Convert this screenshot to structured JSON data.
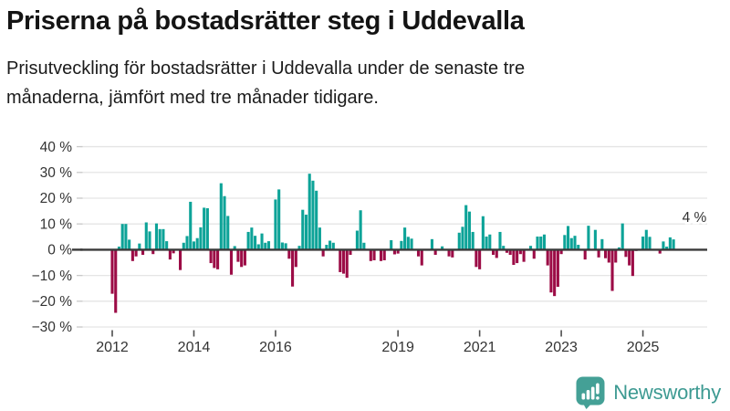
{
  "header": {
    "title": "Priserna på bostadsrätter steg i Uddevalla",
    "subtitle": "Prisutveckling för bostadsrätter i Uddevalla under de senaste tre månaderna, jämfört med tre månader tidigare."
  },
  "chart_data": {
    "type": "bar",
    "unit": "%",
    "frequency": "monthly",
    "start": "2012-01",
    "end": "2025-10",
    "ylim": [
      -30,
      40
    ],
    "grid": true,
    "legend": false,
    "values": [
      -17.1,
      -24.5,
      1.2,
      10,
      10,
      3.9,
      -4.4,
      -2.6,
      2.4,
      -2,
      10.6,
      7.1,
      -1.7,
      10.2,
      8,
      8,
      3.3,
      -3.8,
      -1.4,
      0,
      -7.9,
      2.7,
      5.3,
      18.6,
      3.2,
      4.5,
      8.7,
      16.3,
      16.1,
      -5.2,
      -7.1,
      -7.6,
      25.8,
      20.8,
      13.1,
      -9.7,
      1.4,
      -4.7,
      -6.7,
      -6.1,
      6.9,
      8.6,
      5.4,
      2.1,
      6.3,
      2.7,
      3.3,
      0,
      19.5,
      23.4,
      2.8,
      2.5,
      -3.5,
      -14.3,
      -6.7,
      1.5,
      15.5,
      13.6,
      29.5,
      26.8,
      22.9,
      8.6,
      -2.6,
      1.9,
      3.5,
      2.7,
      0,
      -8.7,
      -9.3,
      -10.9,
      -2,
      0,
      7.4,
      15.3,
      2.7,
      0,
      -4.4,
      -4.1,
      0,
      -4.4,
      -4.1,
      0,
      3.7,
      -1.8,
      -1.5,
      3.4,
      8.6,
      5,
      4.3,
      0.3,
      -2.6,
      -6.1,
      0,
      0,
      4.1,
      -2,
      0,
      1.3,
      0,
      -2.6,
      -3,
      0,
      6.6,
      8.9,
      17.3,
      14.8,
      6.9,
      -6.7,
      -7.6,
      13,
      5.1,
      5.9,
      -2,
      -3.2,
      6.9,
      1.5,
      -1.2,
      -2,
      -5.9,
      -5.2,
      -1.7,
      -4.7,
      0,
      1.5,
      -3.5,
      5.1,
      5.1,
      5.9,
      -6.1,
      -16.6,
      -18,
      -14.4,
      -1.7,
      5.7,
      9.2,
      4.5,
      5.4,
      1.9,
      0,
      -3.8,
      9.3,
      0,
      7.7,
      -3,
      4.1,
      -3.3,
      -5,
      -16,
      -5,
      0.9,
      10.2,
      -2.8,
      -6.1,
      -10.2,
      -0.5,
      0.3,
      5.1,
      7.7,
      5,
      0.3,
      0.3,
      -1.5,
      3.2,
      1.2,
      4.8,
      4
    ],
    "y_ticks": [
      {
        "value": 40,
        "label": "40 %"
      },
      {
        "value": 30,
        "label": "30 %"
      },
      {
        "value": 20,
        "label": "20 %"
      },
      {
        "value": 10,
        "label": "10 %"
      },
      {
        "value": 0,
        "label": "0 %"
      },
      {
        "value": -10,
        "label": "−10 %"
      },
      {
        "value": -20,
        "label": "−20 %"
      },
      {
        "value": -30,
        "label": "−30 %"
      }
    ],
    "x_ticks": [
      {
        "year": 2012,
        "label": "2012"
      },
      {
        "year": 2014,
        "label": "2014"
      },
      {
        "year": 2016,
        "label": "2016"
      },
      {
        "year": 2019,
        "label": "2019"
      },
      {
        "year": 2021,
        "label": "2021"
      },
      {
        "year": 2023,
        "label": "2023"
      },
      {
        "year": 2025,
        "label": "2025"
      }
    ],
    "annotation": {
      "text": "4 %",
      "value": 4
    },
    "colors": {
      "positive": "#0DA398",
      "negative": "#9C0C46",
      "grid": "#E5E5E5",
      "zero_line": "#3A3A3A",
      "y_tick_dash": "#C9C9C9",
      "x_tick_dash": "#4D4D4D",
      "tick_text": "#333333"
    }
  },
  "footer": {
    "brand": "Newsworthy",
    "logo_icon": "newsworthy-speech-bubble-bars-icon",
    "brand_color": "#3D9A92"
  }
}
